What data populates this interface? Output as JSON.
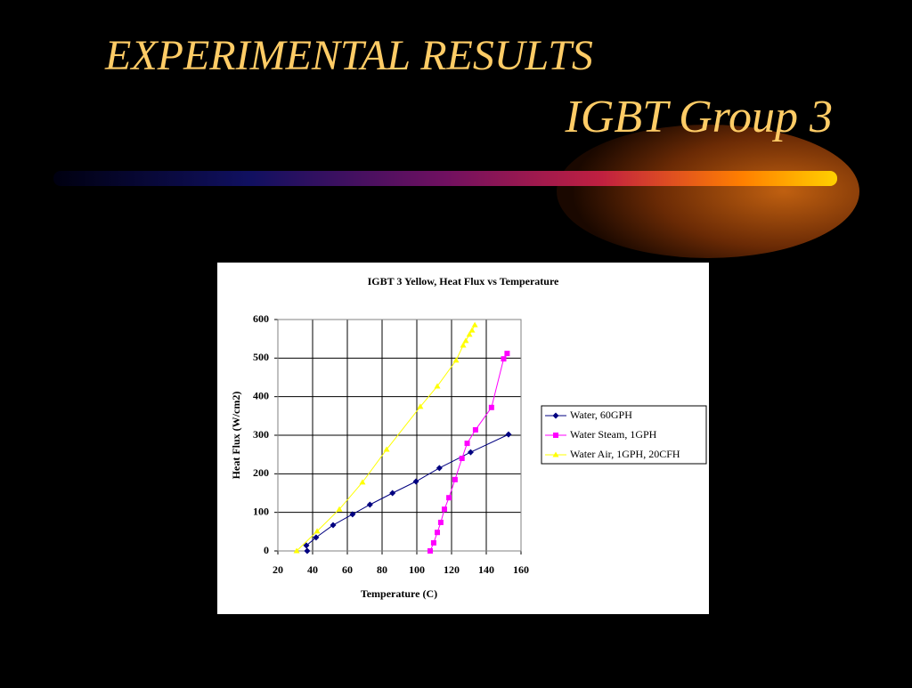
{
  "slide": {
    "title": "EXPERIMENTAL RESULTS",
    "subtitle": "IGBT Group 3"
  },
  "chart_data": {
    "type": "line",
    "title": "IGBT 3 Yellow, Heat Flux vs Temperature",
    "x_label": "Temperature (C)",
    "y_label": "Heat Flux (W/cm2)",
    "xlim": [
      20,
      160
    ],
    "xticks": [
      20,
      40,
      60,
      80,
      100,
      120,
      140,
      160
    ],
    "ylim": [
      0,
      600
    ],
    "yticks": [
      0,
      100,
      200,
      300,
      400,
      500,
      600
    ],
    "grid": true,
    "legend": "right",
    "series": [
      {
        "name": "Water, 60GPH",
        "color": "#000080",
        "marker": "diamond",
        "x": [
          36.9,
          36.4,
          42,
          51.8,
          63,
          73,
          86,
          99.5,
          113,
          131,
          152.8
        ],
        "values": [
          0,
          14,
          35,
          67,
          95,
          120,
          150,
          180,
          215,
          256,
          302
        ]
      },
      {
        "name": "Water Steam, 1GPH",
        "color": "#ff00ff",
        "marker": "square",
        "x": [
          107.7,
          109.7,
          111.8,
          113.8,
          115.9,
          118.5,
          122,
          126,
          129,
          133.8,
          143,
          150,
          152
        ],
        "values": [
          0,
          21,
          48,
          74,
          108,
          138,
          185,
          240,
          279,
          314,
          372,
          498,
          512
        ]
      },
      {
        "name": "Water Air, 1GPH, 20CFH",
        "color": "#ffff00",
        "marker": "triangle",
        "x": [
          30.8,
          42.6,
          55.4,
          68.7,
          82.6,
          102,
          111.8,
          122.6,
          126.7,
          128.2,
          130.3,
          131.8,
          133.4
        ],
        "values": [
          0,
          51,
          108,
          178,
          263,
          374,
          427,
          494,
          533,
          545,
          561,
          572,
          586
        ]
      }
    ]
  }
}
